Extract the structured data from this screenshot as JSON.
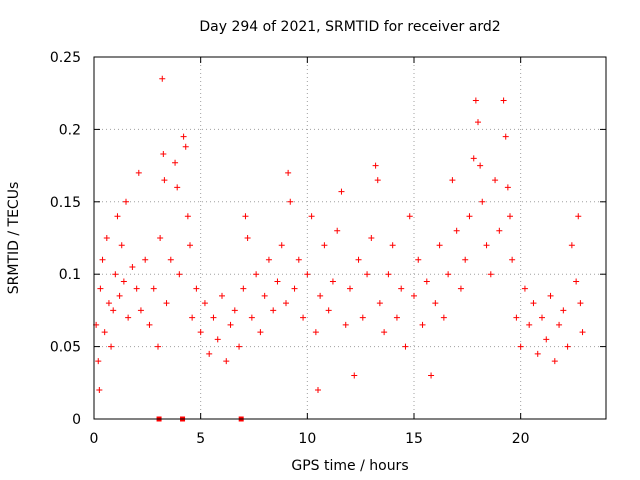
{
  "chart_data": {
    "type": "scatter",
    "title": "Day 294 of 2021, SRMTID for receiver ard2",
    "xlabel": "GPS time / hours",
    "ylabel": "SRMTID / TECUs",
    "xlim": [
      0,
      24
    ],
    "ylim": [
      0,
      0.25
    ],
    "x_ticks": [
      0,
      5,
      10,
      15,
      20
    ],
    "x_tick_labels": [
      "0",
      "5",
      "10",
      "15",
      "20"
    ],
    "y_ticks": [
      0,
      0.05,
      0.1,
      0.15,
      0.2,
      0.25
    ],
    "y_tick_labels": [
      "0",
      "0.05",
      "0.1",
      "0.15",
      "0.2",
      "0.25"
    ],
    "grid": true,
    "series_color": "#ff0000",
    "marker": "plus",
    "gap_markers_x": [
      3.05,
      4.15,
      6.9
    ],
    "points": [
      [
        0.1,
        0.065
      ],
      [
        0.2,
        0.04
      ],
      [
        0.25,
        0.02
      ],
      [
        0.3,
        0.09
      ],
      [
        0.4,
        0.11
      ],
      [
        0.5,
        0.06
      ],
      [
        0.6,
        0.125
      ],
      [
        0.7,
        0.08
      ],
      [
        0.8,
        0.05
      ],
      [
        0.9,
        0.075
      ],
      [
        1.0,
        0.1
      ],
      [
        1.1,
        0.14
      ],
      [
        1.2,
        0.085
      ],
      [
        1.3,
        0.12
      ],
      [
        1.4,
        0.095
      ],
      [
        1.5,
        0.15
      ],
      [
        1.6,
        0.07
      ],
      [
        1.8,
        0.105
      ],
      [
        2.0,
        0.09
      ],
      [
        2.1,
        0.17
      ],
      [
        2.2,
        0.075
      ],
      [
        2.4,
        0.11
      ],
      [
        2.6,
        0.065
      ],
      [
        2.8,
        0.09
      ],
      [
        3.0,
        0.05
      ],
      [
        3.1,
        0.125
      ],
      [
        3.2,
        0.235
      ],
      [
        3.25,
        0.183
      ],
      [
        3.3,
        0.165
      ],
      [
        3.4,
        0.08
      ],
      [
        3.6,
        0.11
      ],
      [
        3.8,
        0.177
      ],
      [
        3.9,
        0.16
      ],
      [
        4.0,
        0.1
      ],
      [
        4.2,
        0.195
      ],
      [
        4.3,
        0.188
      ],
      [
        4.4,
        0.14
      ],
      [
        4.5,
        0.12
      ],
      [
        4.6,
        0.07
      ],
      [
        4.8,
        0.09
      ],
      [
        5.0,
        0.06
      ],
      [
        5.2,
        0.08
      ],
      [
        5.4,
        0.045
      ],
      [
        5.6,
        0.07
      ],
      [
        5.8,
        0.055
      ],
      [
        6.0,
        0.085
      ],
      [
        6.2,
        0.04
      ],
      [
        6.4,
        0.065
      ],
      [
        6.6,
        0.075
      ],
      [
        6.8,
        0.05
      ],
      [
        7.0,
        0.09
      ],
      [
        7.1,
        0.14
      ],
      [
        7.2,
        0.125
      ],
      [
        7.4,
        0.07
      ],
      [
        7.6,
        0.1
      ],
      [
        7.8,
        0.06
      ],
      [
        8.0,
        0.085
      ],
      [
        8.2,
        0.11
      ],
      [
        8.4,
        0.075
      ],
      [
        8.6,
        0.095
      ],
      [
        8.8,
        0.12
      ],
      [
        9.0,
        0.08
      ],
      [
        9.1,
        0.17
      ],
      [
        9.2,
        0.15
      ],
      [
        9.4,
        0.09
      ],
      [
        9.6,
        0.11
      ],
      [
        9.8,
        0.07
      ],
      [
        10.0,
        0.1
      ],
      [
        10.2,
        0.14
      ],
      [
        10.4,
        0.06
      ],
      [
        10.5,
        0.02
      ],
      [
        10.6,
        0.085
      ],
      [
        10.8,
        0.12
      ],
      [
        11.0,
        0.075
      ],
      [
        11.2,
        0.095
      ],
      [
        11.4,
        0.13
      ],
      [
        11.6,
        0.157
      ],
      [
        11.8,
        0.065
      ],
      [
        12.0,
        0.09
      ],
      [
        12.2,
        0.03
      ],
      [
        12.4,
        0.11
      ],
      [
        12.6,
        0.07
      ],
      [
        12.8,
        0.1
      ],
      [
        13.0,
        0.125
      ],
      [
        13.2,
        0.175
      ],
      [
        13.3,
        0.165
      ],
      [
        13.4,
        0.08
      ],
      [
        13.6,
        0.06
      ],
      [
        13.8,
        0.1
      ],
      [
        14.0,
        0.12
      ],
      [
        14.2,
        0.07
      ],
      [
        14.4,
        0.09
      ],
      [
        14.6,
        0.05
      ],
      [
        14.8,
        0.14
      ],
      [
        15.0,
        0.085
      ],
      [
        15.2,
        0.11
      ],
      [
        15.4,
        0.065
      ],
      [
        15.6,
        0.095
      ],
      [
        15.8,
        0.03
      ],
      [
        16.0,
        0.08
      ],
      [
        16.2,
        0.12
      ],
      [
        16.4,
        0.07
      ],
      [
        16.6,
        0.1
      ],
      [
        16.8,
        0.165
      ],
      [
        17.0,
        0.13
      ],
      [
        17.2,
        0.09
      ],
      [
        17.4,
        0.11
      ],
      [
        17.6,
        0.14
      ],
      [
        17.8,
        0.18
      ],
      [
        17.9,
        0.22
      ],
      [
        18.0,
        0.205
      ],
      [
        18.1,
        0.175
      ],
      [
        18.2,
        0.15
      ],
      [
        18.4,
        0.12
      ],
      [
        18.6,
        0.1
      ],
      [
        18.8,
        0.165
      ],
      [
        19.0,
        0.13
      ],
      [
        19.2,
        0.22
      ],
      [
        19.3,
        0.195
      ],
      [
        19.4,
        0.16
      ],
      [
        19.5,
        0.14
      ],
      [
        19.6,
        0.11
      ],
      [
        19.8,
        0.07
      ],
      [
        20.0,
        0.05
      ],
      [
        20.2,
        0.09
      ],
      [
        20.4,
        0.065
      ],
      [
        20.6,
        0.08
      ],
      [
        20.8,
        0.045
      ],
      [
        21.0,
        0.07
      ],
      [
        21.2,
        0.055
      ],
      [
        21.4,
        0.085
      ],
      [
        21.6,
        0.04
      ],
      [
        21.8,
        0.065
      ],
      [
        22.0,
        0.075
      ],
      [
        22.2,
        0.05
      ],
      [
        22.4,
        0.12
      ],
      [
        22.6,
        0.095
      ],
      [
        22.7,
        0.14
      ],
      [
        22.8,
        0.08
      ],
      [
        22.9,
        0.06
      ]
    ]
  }
}
